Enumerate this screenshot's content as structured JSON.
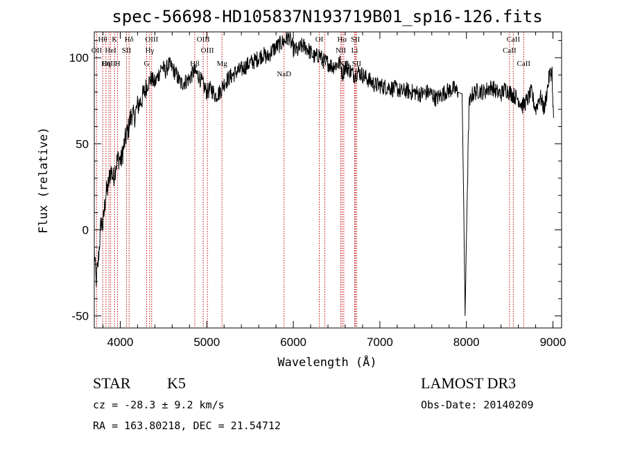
{
  "chart_data": {
    "type": "line",
    "title": "spec-56698-HD105837N193719B01_sp16-126.fits",
    "xlabel": "Wavelength (Å)",
    "ylabel": "Flux (relative)",
    "xlim": [
      3700,
      9100
    ],
    "ylim": [
      -57,
      115
    ],
    "xticks": [
      4000,
      5000,
      6000,
      7000,
      8000,
      9000
    ],
    "yticks": [
      -50,
      0,
      50,
      100
    ],
    "series": [
      {
        "name": "flux",
        "x": [
          3700,
          3720,
          3740,
          3760,
          3780,
          3800,
          3830,
          3860,
          3890,
          3920,
          3950,
          3980,
          4010,
          4040,
          4070,
          4100,
          4130,
          4160,
          4200,
          4240,
          4280,
          4320,
          4360,
          4400,
          4440,
          4480,
          4520,
          4560,
          4600,
          4650,
          4700,
          4750,
          4800,
          4850,
          4900,
          4950,
          5000,
          5050,
          5100,
          5150,
          5200,
          5250,
          5300,
          5350,
          5400,
          5450,
          5500,
          5550,
          5600,
          5650,
          5700,
          5750,
          5800,
          5850,
          5900,
          5950,
          6000,
          6050,
          6100,
          6150,
          6200,
          6250,
          6300,
          6350,
          6400,
          6450,
          6500,
          6550,
          6563,
          6600,
          6650,
          6700,
          6750,
          6800,
          6850,
          6900,
          6950,
          7000,
          7050,
          7100,
          7150,
          7200,
          7250,
          7300,
          7350,
          7400,
          7450,
          7500,
          7550,
          7600,
          7650,
          7700,
          7750,
          7800,
          7850,
          7900,
          7950,
          7970,
          7985,
          8000,
          8030,
          8060,
          8100,
          8150,
          8200,
          8250,
          8300,
          8350,
          8400,
          8450,
          8500,
          8550,
          8600,
          8650,
          8700,
          8750,
          8800,
          8850,
          8900,
          8930,
          8960,
          8990,
          9000,
          9010
        ],
        "values": [
          -12,
          -30,
          -22,
          -8,
          5,
          2,
          20,
          25,
          35,
          30,
          38,
          42,
          40,
          48,
          55,
          60,
          68,
          65,
          72,
          75,
          80,
          85,
          88,
          85,
          90,
          95,
          92,
          96,
          94,
          90,
          85,
          86,
          88,
          92,
          90,
          85,
          80,
          82,
          78,
          80,
          85,
          88,
          90,
          92,
          93,
          95,
          97,
          98,
          100,
          102,
          100,
          104,
          106,
          108,
          110,
          112,
          105,
          104,
          107,
          106,
          103,
          100,
          102,
          98,
          97,
          95,
          96,
          97,
          90,
          95,
          93,
          90,
          92,
          90,
          88,
          86,
          84,
          84,
          83,
          83,
          82,
          82,
          80,
          81,
          80,
          80,
          79,
          79,
          80,
          79,
          76,
          78,
          80,
          81,
          82,
          80,
          79,
          10,
          -50,
          -5,
          72,
          78,
          80,
          81,
          80,
          82,
          83,
          80,
          79,
          82,
          80,
          78,
          76,
          72,
          75,
          80,
          70,
          78,
          70,
          80,
          90,
          92,
          70,
          65
        ]
      }
    ],
    "emission_lines": [
      {
        "label": "Hθ",
        "wl": 3797,
        "row": 0
      },
      {
        "label": "OII",
        "wl": 3727,
        "row": 1
      },
      {
        "label": "OIII",
        "wl": 3869,
        "row": 2
      },
      {
        "label": "K",
        "wl": 3934,
        "row": 0
      },
      {
        "label": "HeI",
        "wl": 3889,
        "row": 1
      },
      {
        "label": "Hη",
        "wl": 3835,
        "row": 2
      },
      {
        "label": "H",
        "wl": 3969,
        "row": 2
      },
      {
        "label": "Hδ",
        "wl": 4102,
        "row": 0
      },
      {
        "label": "SII",
        "wl": 4072,
        "row": 1
      },
      {
        "label": "OIII",
        "wl": 4363,
        "row": 0
      },
      {
        "label": "Hγ",
        "wl": 4340,
        "row": 1
      },
      {
        "label": "G",
        "wl": 4305,
        "row": 2
      },
      {
        "label": "Hβ",
        "wl": 4861,
        "row": 2
      },
      {
        "label": "OIII",
        "wl": 4959,
        "row": 0
      },
      {
        "label": "OIII",
        "wl": 5007,
        "row": 1
      },
      {
        "label": "Mg",
        "wl": 5175,
        "row": 2
      },
      {
        "label": "NaD",
        "wl": 5893,
        "row": 3
      },
      {
        "label": "OI",
        "wl": 6300,
        "row": 0
      },
      {
        "label": "OI",
        "wl": 6364,
        "row": 2
      },
      {
        "label": "Hα",
        "wl": 6563,
        "row": 0
      },
      {
        "label": "NII",
        "wl": 6548,
        "row": 1
      },
      {
        "label": "NII",
        "wl": 6583,
        "row": 2
      },
      {
        "label": "SII",
        "wl": 6717,
        "row": 0
      },
      {
        "label": "Li",
        "wl": 6708,
        "row": 1
      },
      {
        "label": "SII",
        "wl": 6731,
        "row": 2
      },
      {
        "label": "CaII",
        "wl": 8542,
        "row": 0
      },
      {
        "label": "CaII",
        "wl": 8498,
        "row": 1
      },
      {
        "label": "CaII",
        "wl": 8662,
        "row": 2
      }
    ]
  },
  "info": {
    "object_class": "STAR",
    "subclass": "K5",
    "survey": "LAMOST DR3",
    "cz": "cz = -28.3 ± 9.2 km/s",
    "obs_date": "Obs-Date: 20140209",
    "coords": "RA = 163.80218, DEC =  21.54712"
  }
}
